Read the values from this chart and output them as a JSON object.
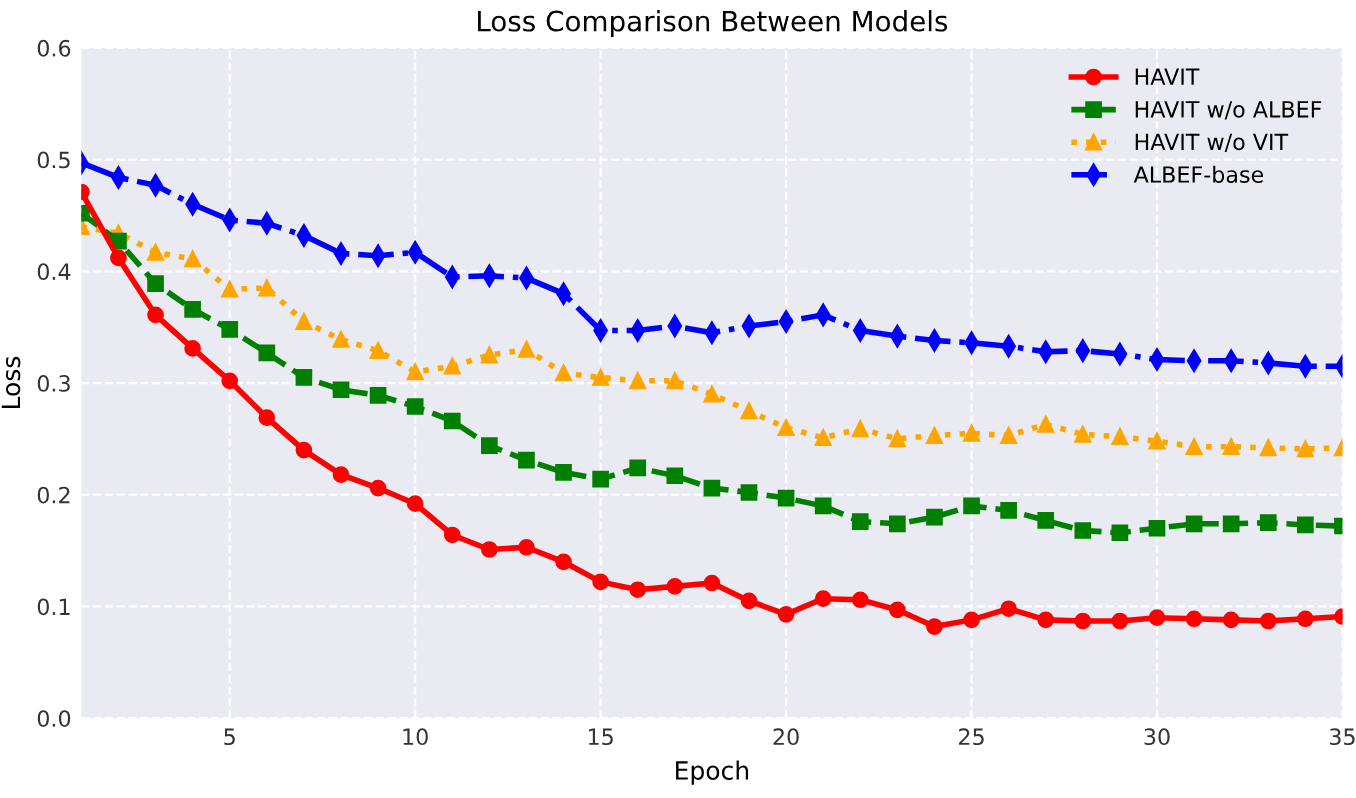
{
  "chart_data": {
    "type": "line",
    "title": "Loss Comparison Between Models",
    "xlabel": "Epoch",
    "ylabel": "Loss",
    "x": [
      1,
      2,
      3,
      4,
      5,
      6,
      7,
      8,
      9,
      10,
      11,
      12,
      13,
      14,
      15,
      16,
      17,
      18,
      19,
      20,
      21,
      22,
      23,
      24,
      25,
      26,
      27,
      28,
      29,
      30,
      31,
      32,
      33,
      34,
      35
    ],
    "xlim": [
      1,
      35
    ],
    "xticks": [
      5,
      10,
      15,
      20,
      25,
      30,
      35
    ],
    "ylim": [
      0,
      0.6
    ],
    "yticks": [
      {
        "value": 0,
        "label": "0.0"
      },
      0.1,
      0.2,
      0.3,
      0.4,
      0.5,
      0.6
    ],
    "grid": true,
    "legend": "top right",
    "series": [
      {
        "name": "HAVIT",
        "color": "#ff0000",
        "marker": "circle",
        "line_style": "solid",
        "values": [
          0.471,
          0.412,
          0.361,
          0.331,
          0.302,
          0.269,
          0.24,
          0.218,
          0.206,
          0.192,
          0.164,
          0.151,
          0.153,
          0.14,
          0.122,
          0.115,
          0.118,
          0.121,
          0.105,
          0.093,
          0.107,
          0.106,
          0.097,
          0.082,
          0.088,
          0.098,
          0.088,
          0.087,
          0.087,
          0.09,
          0.089,
          0.088,
          0.087,
          0.089,
          0.091
        ]
      },
      {
        "name": "HAVIT w/o ALBEF",
        "color": "#008000",
        "marker": "square",
        "line_style": "dashed",
        "values": [
          0.452,
          0.427,
          0.389,
          0.366,
          0.348,
          0.327,
          0.305,
          0.294,
          0.289,
          0.279,
          0.266,
          0.244,
          0.231,
          0.22,
          0.214,
          0.224,
          0.217,
          0.206,
          0.202,
          0.197,
          0.19,
          0.176,
          0.174,
          0.18,
          0.19,
          0.186,
          0.177,
          0.168,
          0.166,
          0.17,
          0.174,
          0.174,
          0.175,
          0.173,
          0.172
        ]
      },
      {
        "name": "HAVIT w/o VIT",
        "color": "#ffa500",
        "marker": "triangle",
        "line_style": "dotted",
        "values": [
          0.44,
          0.434,
          0.417,
          0.411,
          0.384,
          0.385,
          0.355,
          0.339,
          0.329,
          0.31,
          0.315,
          0.325,
          0.33,
          0.309,
          0.305,
          0.302,
          0.302,
          0.29,
          0.275,
          0.26,
          0.251,
          0.259,
          0.25,
          0.253,
          0.255,
          0.253,
          0.263,
          0.254,
          0.252,
          0.248,
          0.243,
          0.243,
          0.242,
          0.241,
          0.242
        ]
      },
      {
        "name": "ALBEF-base",
        "color": "#0000ff",
        "marker": "diamond",
        "line_style": "dashdot",
        "values": [
          0.497,
          0.484,
          0.477,
          0.46,
          0.446,
          0.443,
          0.432,
          0.416,
          0.414,
          0.417,
          0.395,
          0.396,
          0.394,
          0.38,
          0.347,
          0.347,
          0.351,
          0.345,
          0.351,
          0.355,
          0.361,
          0.347,
          0.342,
          0.338,
          0.336,
          0.333,
          0.328,
          0.329,
          0.326,
          0.321,
          0.32,
          0.32,
          0.318,
          0.315,
          0.315
        ]
      }
    ]
  }
}
